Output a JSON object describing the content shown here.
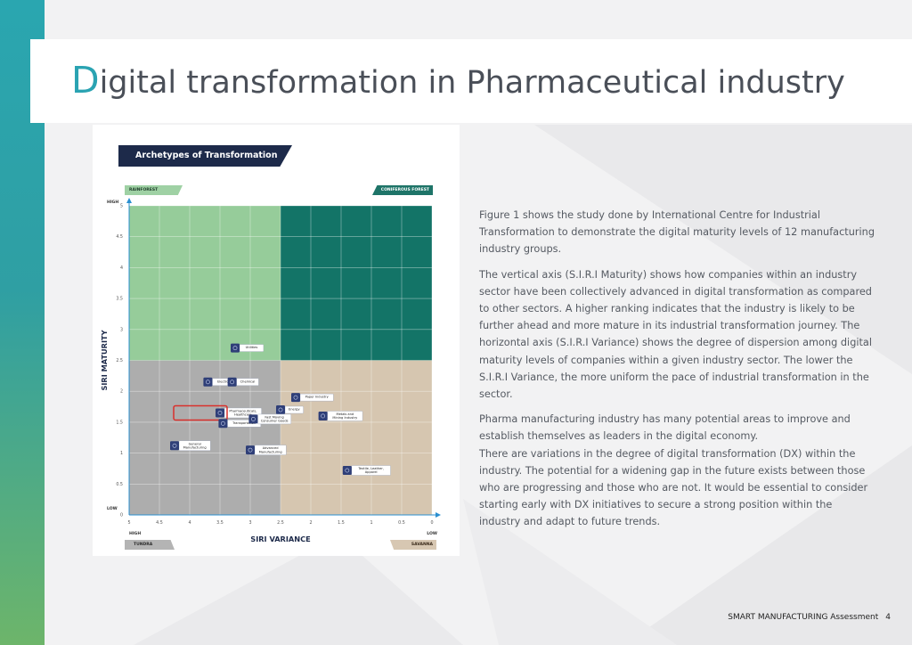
{
  "page": {
    "title_first_letter": "D",
    "title_rest": "igital transformation in Pharmaceutical industry",
    "footer_label": "SMART MANUFACTURING Assessment",
    "page_number": "4"
  },
  "figure": {
    "header": "Archetypes of Transformation",
    "quadrants": {
      "top_left": "RAINFOREST",
      "top_right": "CONIFEROUS FOREST",
      "bottom_left": "TUNDRA",
      "bottom_right": "SAVANNA"
    },
    "colors": {
      "rainforest": "#96cc9a",
      "coniferous": "#137467",
      "tundra": "#adadad",
      "savanna": "#d6c6b0",
      "highlight": "#d9302c",
      "node": "#2f3f78"
    }
  },
  "chart_data": {
    "type": "scatter",
    "xlabel": "SIRI VARIANCE",
    "ylabel": "SIRI MATURITY",
    "x_axis_end_labels": [
      "HIGH",
      "LOW"
    ],
    "y_axis_end_labels": [
      "HIGH",
      "LOW"
    ],
    "x_reversed": true,
    "xlim": [
      5,
      0
    ],
    "ylim": [
      0,
      5
    ],
    "x_ticks": [
      "5",
      "4.5",
      "4",
      "3.5",
      "3",
      "2.5",
      "2",
      "1.5",
      "1",
      "0.5",
      "0"
    ],
    "y_ticks": [
      "0",
      "0.5",
      "1",
      "1.5",
      "2",
      "2.5",
      "3",
      "3.5",
      "4",
      "4.5",
      "5"
    ],
    "quadrant_split": {
      "x": 2.5,
      "y": 2.5
    },
    "grid": true,
    "points": [
      {
        "label": "Utilities",
        "x": 3.25,
        "y": 2.7
      },
      {
        "label": "Electronics",
        "x": 3.7,
        "y": 2.15
      },
      {
        "label": "Chemical",
        "x": 3.3,
        "y": 2.15
      },
      {
        "label": "Paper Industry",
        "x": 2.25,
        "y": 1.9
      },
      {
        "label": "Energy",
        "x": 2.5,
        "y": 1.7
      },
      {
        "label": "Pharmaceuticals, Healthcare",
        "x": 3.5,
        "y": 1.65,
        "highlight": true
      },
      {
        "label": "Transportation",
        "x": 3.45,
        "y": 1.48
      },
      {
        "label": "Fast Moving Consumer Goods",
        "x": 2.95,
        "y": 1.55
      },
      {
        "label": "Metals and Mining Industry",
        "x": 1.8,
        "y": 1.6
      },
      {
        "label": "General Manufacturing",
        "x": 4.25,
        "y": 1.12
      },
      {
        "label": "Advanced Manufacturing",
        "x": 3.0,
        "y": 1.05
      },
      {
        "label": "Textile, Leather, Apparel",
        "x": 1.4,
        "y": 0.72
      }
    ]
  },
  "text": {
    "p1": "Figure 1 shows the study done by International Centre for Industrial Transformation to demonstrate the digital maturity levels of 12 manufacturing industry groups.",
    "p2": "The vertical axis (S.I.R.I Maturity) shows how companies within an industry sector have been collectively advanced in digital transformation as compared to other sectors. A higher ranking indicates that the industry is likely to be further ahead and more mature in its industrial transformation journey. The horizontal axis (S.I.R.I Variance) shows the degree of dispersion among digital maturity levels of companies within a given industry sector. The lower the S.I.R.I Variance, the more uniform the pace of industrial transformation in the sector.",
    "p3": "Pharma manufacturing industry has many potential areas to improve and establish themselves as leaders in the digital economy.",
    "p4": "There are variations in the degree of digital transformation (DX) within the industry. The potential for a widening gap in the future exists between those who are progressing and those who are not. It would be essential to consider starting early with DX initiatives to secure a strong position within the industry and adapt to future trends."
  }
}
